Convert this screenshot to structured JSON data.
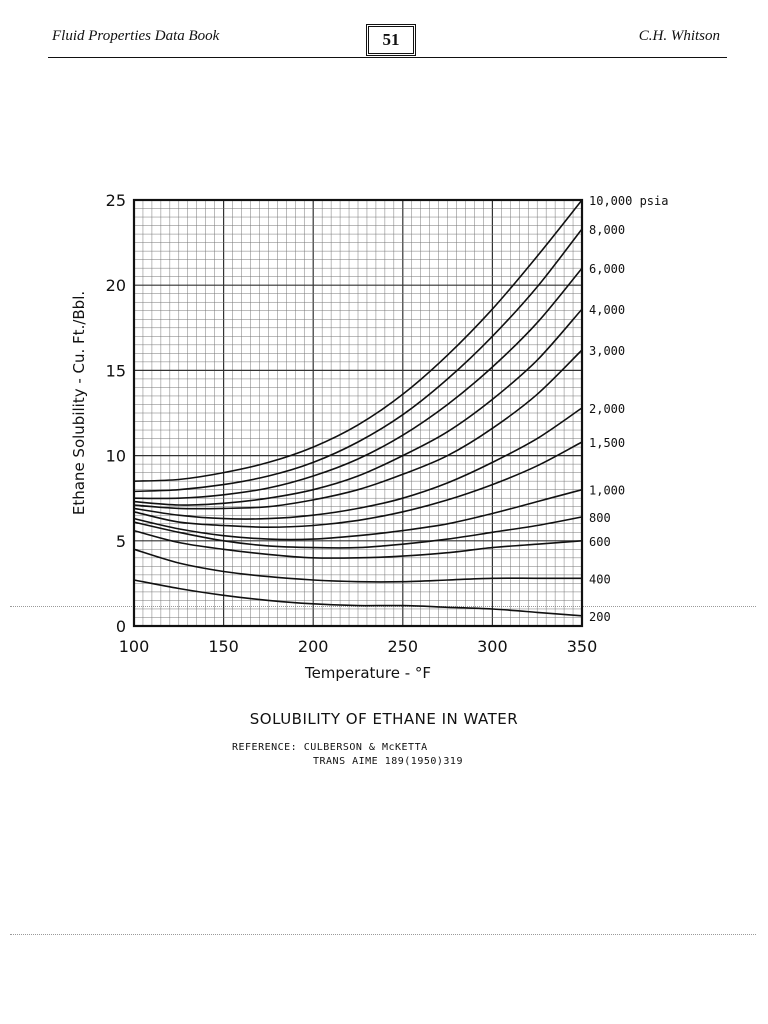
{
  "header": {
    "left": "Fluid Properties Data Book",
    "page_number": "51",
    "right": "C.H. Whitson"
  },
  "caption": {
    "title": "SOLUBILITY OF ETHANE IN WATER",
    "reference_line1": "REFERENCE: CULBERSON & McKETTA",
    "reference_line2": "TRANS AIME 189(1950)319"
  },
  "chart_data": {
    "type": "line",
    "xlabel": "Temperature - °F",
    "ylabel": "Ethane Solubility - Cu. Ft./Bbl.",
    "xlim": [
      100,
      350
    ],
    "ylim": [
      0,
      25
    ],
    "x_ticks": [
      "100",
      "150",
      "200",
      "250",
      "300",
      "350"
    ],
    "y_ticks": [
      "0",
      "5",
      "10",
      "15",
      "20",
      "25"
    ],
    "grid": true,
    "x": [
      100,
      125,
      150,
      175,
      200,
      225,
      250,
      275,
      300,
      325,
      350
    ],
    "series": [
      {
        "name": "10,000 psia",
        "values": [
          8.5,
          8.6,
          9.0,
          9.6,
          10.5,
          11.8,
          13.6,
          15.9,
          18.6,
          21.7,
          25.0
        ]
      },
      {
        "name": "8,000",
        "values": [
          7.9,
          8.0,
          8.3,
          8.8,
          9.6,
          10.8,
          12.4,
          14.5,
          17.0,
          19.9,
          23.3
        ]
      },
      {
        "name": "6,000",
        "values": [
          7.5,
          7.5,
          7.7,
          8.1,
          8.8,
          9.8,
          11.2,
          13.0,
          15.2,
          17.8,
          21.0
        ]
      },
      {
        "name": "4,000",
        "values": [
          7.3,
          7.1,
          7.2,
          7.5,
          8.0,
          8.8,
          10.0,
          11.4,
          13.3,
          15.6,
          18.6
        ]
      },
      {
        "name": "3,000",
        "values": [
          7.1,
          6.9,
          6.9,
          7.0,
          7.4,
          8.0,
          8.9,
          10.0,
          11.6,
          13.6,
          16.2
        ]
      },
      {
        "name": "2,000",
        "values": [
          6.9,
          6.5,
          6.3,
          6.3,
          6.5,
          6.9,
          7.5,
          8.4,
          9.6,
          11.0,
          12.8
        ]
      },
      {
        "name": "1,500",
        "values": [
          6.7,
          6.1,
          5.9,
          5.8,
          5.9,
          6.2,
          6.7,
          7.4,
          8.3,
          9.4,
          10.8
        ]
      },
      {
        "name": "1,000",
        "values": [
          6.3,
          5.7,
          5.3,
          5.1,
          5.1,
          5.3,
          5.6,
          6.0,
          6.6,
          7.3,
          8.0
        ]
      },
      {
        "name": "800",
        "values": [
          6.1,
          5.5,
          5.0,
          4.7,
          4.6,
          4.6,
          4.8,
          5.1,
          5.5,
          5.9,
          6.4
        ]
      },
      {
        "name": "600",
        "values": [
          5.6,
          4.9,
          4.5,
          4.2,
          4.0,
          4.0,
          4.1,
          4.3,
          4.6,
          4.8,
          5.0
        ]
      },
      {
        "name": "400",
        "values": [
          4.5,
          3.7,
          3.2,
          2.9,
          2.7,
          2.6,
          2.6,
          2.7,
          2.8,
          2.8,
          2.8
        ]
      },
      {
        "name": "200",
        "values": [
          2.7,
          2.2,
          1.8,
          1.5,
          1.3,
          1.2,
          1.2,
          1.1,
          1.0,
          0.8,
          0.6
        ]
      }
    ]
  }
}
